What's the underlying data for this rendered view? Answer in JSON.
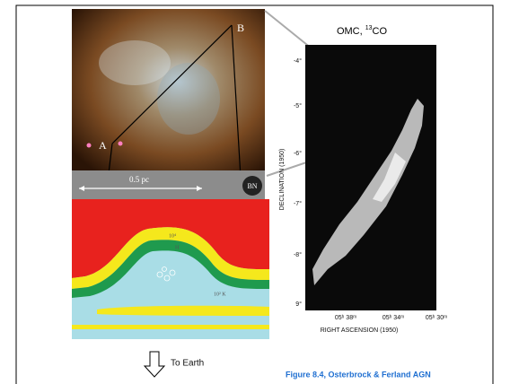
{
  "nebula_image": {
    "label_a": "A",
    "label_b": "B",
    "scale_label": "0.5 pc",
    "bn_label": "BN"
  },
  "cross_section": {
    "labels": [
      "10⁴",
      "H",
      "10² K"
    ]
  },
  "map": {
    "title_prefix": "OMC, ",
    "title_sup": "13",
    "title_suffix": "CO",
    "y_label": "DECLINATION (1950)",
    "x_label": "RIGHT ASCENSION (1950)",
    "y_ticks": [
      "-4°",
      "-5°",
      "-6°",
      "-7°",
      "-8°",
      "9°"
    ],
    "x_ticks": [
      "05ʰ 38ᵐ",
      "05ʰ 34ᵐ",
      "05ʰ 30ᵐ"
    ]
  },
  "arrow_label": "To Earth",
  "caption": "Figure 8.4, Osterbrock & Ferland AGN"
}
